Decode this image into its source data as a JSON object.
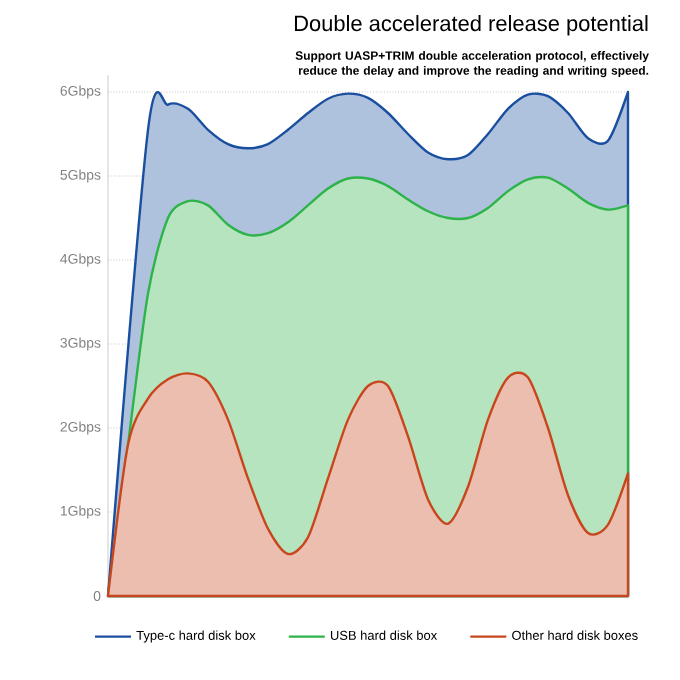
{
  "chart_data": {
    "type": "area",
    "title": "Double accelerated release potential",
    "subtitle": "Support UASP+TRIM double acceleration protocol, effectively reduce the delay and improve the reading and writing speed.",
    "categories": [
      null,
      null,
      null,
      null,
      null,
      null,
      null,
      null,
      null,
      null,
      null,
      null,
      null,
      null,
      null,
      null,
      null,
      null,
      null,
      null,
      null,
      null,
      null,
      null,
      null,
      null,
      null
    ],
    "series": [
      {
        "name": "Type-c hard disk box",
        "color": "#1a4fa0",
        "values": [
          0,
          null,
          5.55,
          5.85,
          5.8,
          5.55,
          5.38,
          5.33,
          5.38,
          5.55,
          5.75,
          5.92,
          5.98,
          5.93,
          5.75,
          5.5,
          5.28,
          5.2,
          5.25,
          5.5,
          5.8,
          5.97,
          5.95,
          5.75,
          5.45,
          5.42,
          6.0
        ]
      },
      {
        "name": "USB hard disk box",
        "color": "#2db34a",
        "values": [
          0,
          1.8,
          3.6,
          4.5,
          4.7,
          4.65,
          4.42,
          4.3,
          4.32,
          4.45,
          4.65,
          4.85,
          4.97,
          4.97,
          4.88,
          4.72,
          4.58,
          4.5,
          4.5,
          4.62,
          4.82,
          4.96,
          4.98,
          4.85,
          4.68,
          4.6,
          4.65
        ]
      },
      {
        "name": "Other hard disk boxes",
        "color": "#c8461c",
        "values": [
          0,
          1.8,
          2.35,
          2.58,
          2.65,
          2.55,
          2.1,
          1.4,
          0.8,
          0.5,
          0.7,
          1.4,
          2.1,
          2.5,
          2.5,
          1.9,
          1.15,
          0.86,
          1.3,
          2.1,
          2.6,
          2.6,
          2.0,
          1.2,
          0.75,
          0.85,
          1.46
        ]
      }
    ],
    "ylim": [
      0,
      6.2
    ],
    "yticks": [
      0,
      {
        "value": 1,
        "label": "1Gbps"
      },
      {
        "value": 2,
        "label": "2Gbps"
      },
      {
        "value": 3,
        "label": "3Gbps"
      },
      {
        "value": 4,
        "label": "4Gbps"
      },
      {
        "value": 5,
        "label": "5Gbps"
      },
      {
        "value": 6,
        "label": "6Gbps"
      }
    ],
    "grid": "y",
    "legend": "bottom",
    "tick_labels": "y"
  }
}
